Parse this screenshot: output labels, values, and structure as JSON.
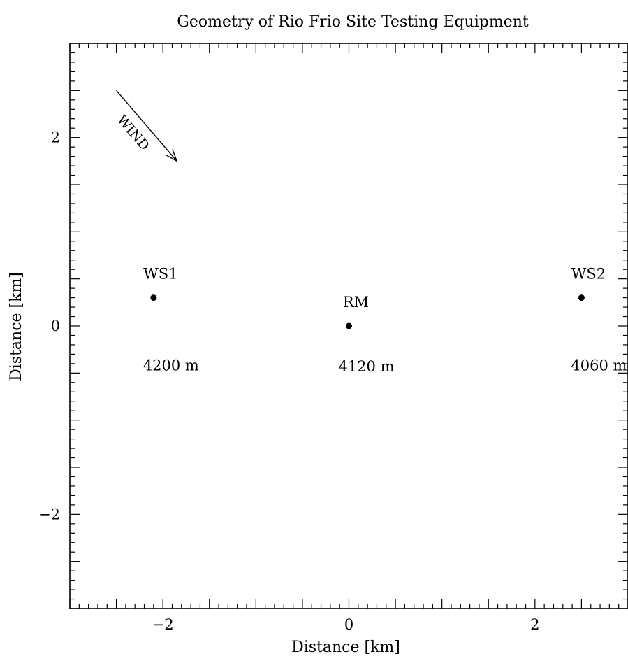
{
  "chart_data": {
    "type": "scatter",
    "title": "Geometry of Rio Frio Site Testing Equipment",
    "xlabel": "Distance [km]",
    "ylabel": "Distance [km]",
    "xlim": [
      -3,
      3
    ],
    "ylim": [
      -3,
      3
    ],
    "x_tick_labels": [
      {
        "value": -2,
        "label": "−2"
      },
      {
        "value": 0,
        "label": "0"
      },
      {
        "value": 2,
        "label": "2"
      }
    ],
    "y_tick_labels": [
      {
        "value": 2,
        "label": "2"
      },
      {
        "value": 0,
        "label": "0"
      },
      {
        "value": -2,
        "label": "−2"
      }
    ],
    "major_tick_step": 0.5,
    "minor_tick_step": 0.1,
    "grid": false,
    "points": [
      {
        "name": "WS1",
        "x": -2.1,
        "y": 0.3,
        "altitude_label": "4200 m"
      },
      {
        "name": "RM",
        "x": 0.0,
        "y": 0.0,
        "altitude_label": "4120 m"
      },
      {
        "name": "WS2",
        "x": 2.5,
        "y": 0.3,
        "altitude_label": "4060 m"
      }
    ],
    "annotations": [
      {
        "text": "WIND",
        "type": "arrow",
        "from": [
          -2.5,
          2.5
        ],
        "to": [
          -1.85,
          1.75
        ]
      }
    ]
  }
}
